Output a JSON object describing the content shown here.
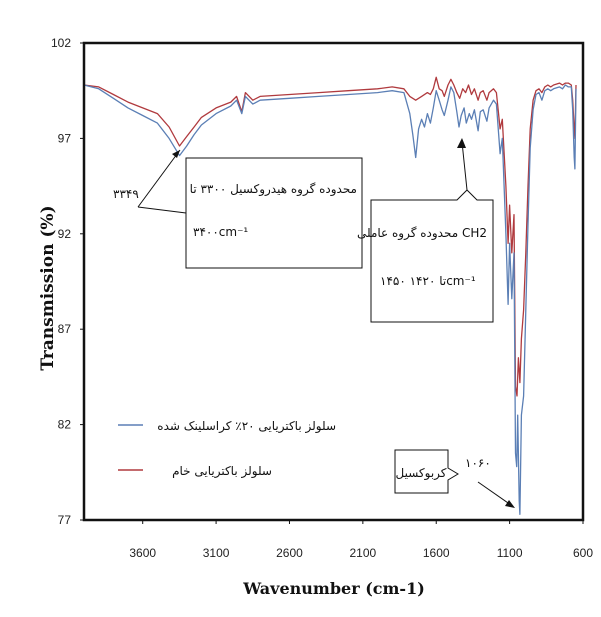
{
  "chart_data": {
    "type": "line",
    "xlabel": "Wavenumber (cm-1)",
    "ylabel": "Transmission (%)",
    "xlim": [
      4000,
      600
    ],
    "ylim": [
      77,
      102
    ],
    "x_ticks": [
      3600,
      3100,
      2600,
      2100,
      1600,
      1100,
      600
    ],
    "y_ticks": [
      77,
      82,
      87,
      92,
      97,
      102
    ],
    "x_tick_labels": [
      "3600",
      "3100",
      "2600",
      "2100",
      "1600",
      "1100",
      "600"
    ],
    "y_tick_labels": [
      "77",
      "82",
      "87",
      "92",
      "97",
      "102"
    ],
    "grid": false,
    "legend_position": "bottom-left",
    "series": [
      {
        "name": "سلولز باکتریایی ۲۰٪ کراسلینک شده",
        "color": "#5b7fb5",
        "points": [
          [
            4000,
            99.8
          ],
          [
            3900,
            99.6
          ],
          [
            3800,
            99.1
          ],
          [
            3700,
            98.6
          ],
          [
            3600,
            98.2
          ],
          [
            3500,
            97.8
          ],
          [
            3420,
            97.0
          ],
          [
            3349,
            96.1
          ],
          [
            3300,
            96.6
          ],
          [
            3250,
            97.2
          ],
          [
            3200,
            97.7
          ],
          [
            3100,
            98.3
          ],
          [
            3000,
            98.7
          ],
          [
            2960,
            99.0
          ],
          [
            2925,
            98.3
          ],
          [
            2900,
            99.2
          ],
          [
            2850,
            98.8
          ],
          [
            2800,
            99.0
          ],
          [
            2600,
            99.1
          ],
          [
            2400,
            99.2
          ],
          [
            2200,
            99.3
          ],
          [
            2000,
            99.4
          ],
          [
            1900,
            99.5
          ],
          [
            1820,
            99.4
          ],
          [
            1780,
            98.3
          ],
          [
            1760,
            97.2
          ],
          [
            1740,
            96.0
          ],
          [
            1720,
            97.5
          ],
          [
            1700,
            98.0
          ],
          [
            1680,
            97.6
          ],
          [
            1660,
            98.3
          ],
          [
            1640,
            97.8
          ],
          [
            1620,
            98.6
          ],
          [
            1600,
            99.5
          ],
          [
            1580,
            99.0
          ],
          [
            1560,
            98.5
          ],
          [
            1545,
            98.2
          ],
          [
            1520,
            99.0
          ],
          [
            1500,
            99.7
          ],
          [
            1480,
            99.4
          ],
          [
            1460,
            98.4
          ],
          [
            1445,
            97.6
          ],
          [
            1430,
            98.2
          ],
          [
            1410,
            98.6
          ],
          [
            1395,
            97.8
          ],
          [
            1375,
            98.3
          ],
          [
            1360,
            98.0
          ],
          [
            1340,
            98.5
          ],
          [
            1315,
            97.4
          ],
          [
            1300,
            98.4
          ],
          [
            1280,
            98.5
          ],
          [
            1255,
            97.9
          ],
          [
            1240,
            98.6
          ],
          [
            1210,
            99.0
          ],
          [
            1190,
            98.8
          ],
          [
            1165,
            96.2
          ],
          [
            1150,
            97.0
          ],
          [
            1125,
            92.0
          ],
          [
            1110,
            88.3
          ],
          [
            1100,
            91.5
          ],
          [
            1085,
            88.6
          ],
          [
            1070,
            91.0
          ],
          [
            1060,
            80.5
          ],
          [
            1052,
            79.8
          ],
          [
            1045,
            82.5
          ],
          [
            1035,
            78.0
          ],
          [
            1030,
            77.3
          ],
          [
            1020,
            82.5
          ],
          [
            1005,
            83.5
          ],
          [
            990,
            88.0
          ],
          [
            975,
            92.5
          ],
          [
            960,
            96.5
          ],
          [
            940,
            98.5
          ],
          [
            920,
            99.3
          ],
          [
            900,
            99.4
          ],
          [
            880,
            99.0
          ],
          [
            860,
            99.5
          ],
          [
            840,
            99.6
          ],
          [
            820,
            99.5
          ],
          [
            800,
            99.6
          ],
          [
            760,
            99.7
          ],
          [
            740,
            99.6
          ],
          [
            720,
            99.8
          ],
          [
            700,
            99.7
          ],
          [
            680,
            99.7
          ],
          [
            670,
            98.5
          ],
          [
            660,
            96.0
          ],
          [
            655,
            95.4
          ],
          [
            648,
            99.6
          ]
        ]
      },
      {
        "name": "سلولز باکتریایی خام",
        "color": "#b03a3e",
        "points": [
          [
            4000,
            99.8
          ],
          [
            3900,
            99.7
          ],
          [
            3800,
            99.3
          ],
          [
            3700,
            98.9
          ],
          [
            3600,
            98.6
          ],
          [
            3500,
            98.3
          ],
          [
            3420,
            97.6
          ],
          [
            3349,
            96.6
          ],
          [
            3300,
            97.1
          ],
          [
            3250,
            97.6
          ],
          [
            3200,
            98.1
          ],
          [
            3100,
            98.6
          ],
          [
            3000,
            98.9
          ],
          [
            2960,
            99.2
          ],
          [
            2925,
            98.4
          ],
          [
            2900,
            99.4
          ],
          [
            2850,
            99.0
          ],
          [
            2800,
            99.2
          ],
          [
            2600,
            99.3
          ],
          [
            2400,
            99.4
          ],
          [
            2200,
            99.5
          ],
          [
            2000,
            99.6
          ],
          [
            1900,
            99.7
          ],
          [
            1820,
            99.6
          ],
          [
            1780,
            99.2
          ],
          [
            1740,
            99.0
          ],
          [
            1700,
            99.2
          ],
          [
            1660,
            99.4
          ],
          [
            1640,
            99.3
          ],
          [
            1620,
            99.6
          ],
          [
            1600,
            100.2
          ],
          [
            1580,
            99.6
          ],
          [
            1560,
            99.5
          ],
          [
            1545,
            99.2
          ],
          [
            1520,
            99.8
          ],
          [
            1500,
            100.1
          ],
          [
            1480,
            99.8
          ],
          [
            1460,
            99.4
          ],
          [
            1440,
            99.1
          ],
          [
            1420,
            99.6
          ],
          [
            1400,
            99.4
          ],
          [
            1380,
            99.8
          ],
          [
            1360,
            99.3
          ],
          [
            1340,
            99.6
          ],
          [
            1315,
            99.0
          ],
          [
            1300,
            99.4
          ],
          [
            1280,
            99.5
          ],
          [
            1255,
            99.0
          ],
          [
            1240,
            99.4
          ],
          [
            1210,
            99.6
          ],
          [
            1190,
            99.4
          ],
          [
            1165,
            97.5
          ],
          [
            1150,
            98.0
          ],
          [
            1125,
            94.5
          ],
          [
            1110,
            91.5
          ],
          [
            1100,
            93.5
          ],
          [
            1085,
            91.0
          ],
          [
            1070,
            93.0
          ],
          [
            1060,
            84.0
          ],
          [
            1050,
            83.5
          ],
          [
            1040,
            85.5
          ],
          [
            1030,
            84.2
          ],
          [
            1020,
            86.5
          ],
          [
            1005,
            88.0
          ],
          [
            990,
            91.0
          ],
          [
            975,
            94.5
          ],
          [
            960,
            97.5
          ],
          [
            940,
            99.0
          ],
          [
            920,
            99.5
          ],
          [
            900,
            99.6
          ],
          [
            880,
            99.4
          ],
          [
            860,
            99.7
          ],
          [
            840,
            99.8
          ],
          [
            820,
            99.7
          ],
          [
            800,
            99.8
          ],
          [
            760,
            99.9
          ],
          [
            740,
            99.8
          ],
          [
            720,
            99.9
          ],
          [
            700,
            99.9
          ],
          [
            680,
            99.8
          ],
          [
            670,
            99.0
          ],
          [
            660,
            97.5
          ],
          [
            655,
            97.0
          ],
          [
            648,
            99.8
          ]
        ]
      }
    ],
    "annotations": [
      {
        "text": "۳۳۴۹",
        "x": 3349
      },
      {
        "line1": "محدوده گروه هیدروکسیل ۳۳۰۰ تا",
        "line2": "۳۴۰۰cm⁻¹"
      },
      {
        "line1": "محدوده گروه عاملی CH2",
        "line2": "۱۴۵۰ تا ۱۴۲۰cm⁻¹"
      },
      {
        "text": "کربوکسیل"
      },
      {
        "text": "۱۰۶۰",
        "x": 1060
      }
    ]
  }
}
